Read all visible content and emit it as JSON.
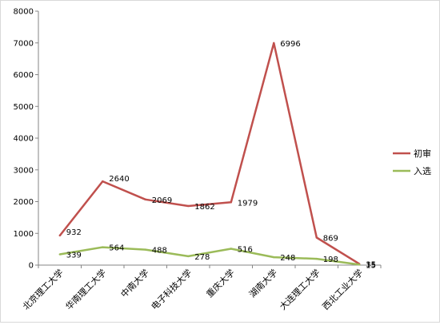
{
  "chart_data": {
    "type": "line",
    "categories": [
      "北京理工大学",
      "华南理工大学",
      "中南大学",
      "电子科技大学",
      "重庆大学",
      "湖南大学",
      "大连理工大学",
      "西北工业大学"
    ],
    "series": [
      {
        "name": "初审",
        "color": "#c0504d",
        "values": [
          932,
          2640,
          2069,
          1862,
          1979,
          6996,
          869,
          35
        ]
      },
      {
        "name": "入选",
        "color": "#9bbb59",
        "values": [
          339,
          564,
          488,
          278,
          516,
          248,
          198,
          15
        ]
      }
    ],
    "y_ticks": [
      "0",
      "1000",
      "2000",
      "3000",
      "4000",
      "5000",
      "6000",
      "7000",
      "8000"
    ],
    "ylim": [
      0,
      8000
    ],
    "legend_position": "right",
    "grid": false,
    "data_labels": true
  }
}
